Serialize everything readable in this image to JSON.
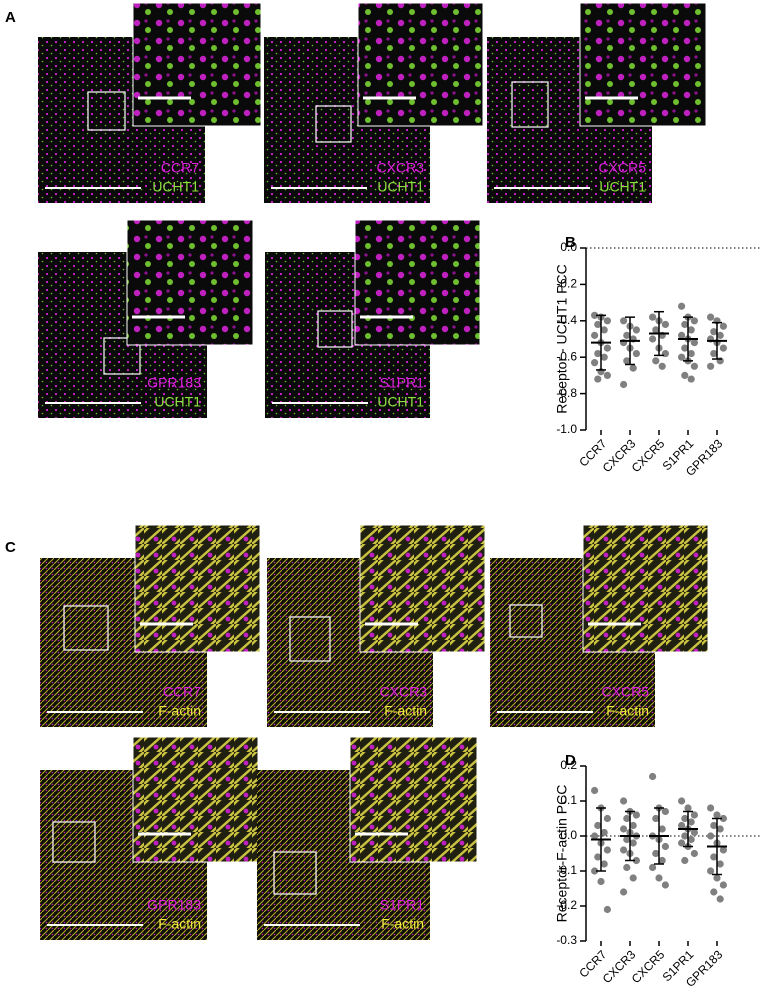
{
  "panels": [
    {
      "letter": "A",
      "images": [
        {
          "receptor": "CCR7",
          "marker": "UCHT1"
        },
        {
          "receptor": "CXCR3",
          "marker": "UCHT1"
        },
        {
          "receptor": "CXCR5",
          "marker": "UCHT1"
        },
        {
          "receptor": "GPR183",
          "marker": "UCHT1"
        },
        {
          "receptor": "S1PR1",
          "marker": "UCHT1"
        }
      ]
    },
    {
      "letter": "C",
      "images": [
        {
          "receptor": "CCR7",
          "marker": "F-actin"
        },
        {
          "receptor": "CXCR3",
          "marker": "F-actin"
        },
        {
          "receptor": "CXCR5",
          "marker": "F-actin"
        },
        {
          "receptor": "GPR183",
          "marker": "F-actin"
        },
        {
          "receptor": "S1PR1",
          "marker": "F-actin"
        }
      ]
    }
  ],
  "chart_data": [
    {
      "type": "strip",
      "panel": "B",
      "ylabel": "Receptor - UCHT1 PCC",
      "categories": [
        "CCR7",
        "CXCR3",
        "CXCR5",
        "S1PR1",
        "GPR183"
      ],
      "color": "#808080",
      "points": [
        [
          -0.37,
          -0.38,
          -0.4,
          -0.42,
          -0.45,
          -0.48,
          -0.52,
          -0.55,
          -0.58,
          -0.6,
          -0.63,
          -0.68,
          -0.7,
          -0.72
        ],
        [
          -0.4,
          -0.43,
          -0.45,
          -0.48,
          -0.5,
          -0.52,
          -0.55,
          -0.58,
          -0.62,
          -0.66,
          -0.75
        ],
        [
          -0.38,
          -0.4,
          -0.42,
          -0.45,
          -0.48,
          -0.5,
          -0.55,
          -0.58,
          -0.62,
          -0.65
        ],
        [
          -0.32,
          -0.38,
          -0.4,
          -0.42,
          -0.45,
          -0.48,
          -0.5,
          -0.52,
          -0.55,
          -0.58,
          -0.6,
          -0.62,
          -0.65,
          -0.7,
          -0.72
        ],
        [
          -0.38,
          -0.4,
          -0.43,
          -0.46,
          -0.48,
          -0.5,
          -0.52,
          -0.55,
          -0.58,
          -0.62,
          -0.65
        ]
      ],
      "means": [
        -0.52,
        -0.51,
        -0.47,
        -0.5,
        -0.51
      ],
      "sds": [
        0.15,
        0.13,
        0.12,
        0.12,
        0.1
      ],
      "ylim": [
        -1,
        0
      ],
      "yticks": [
        {
          "value": 0,
          "label": "0.0"
        },
        -0.2,
        -0.4,
        -0.6,
        -0.8,
        {
          "value": -1,
          "label": "-1.0"
        }
      ],
      "zero_line": true
    },
    {
      "type": "strip",
      "panel": "D",
      "ylabel": "Receptor-F-actin PCC",
      "categories": [
        "CCR7",
        "CXCR3",
        "CXCR5",
        "S1PR1",
        "GPR183"
      ],
      "color": "#808080",
      "points": [
        [
          0.13,
          0.08,
          0.05,
          0.03,
          0.01,
          0,
          -0.02,
          -0.04,
          -0.06,
          -0.08,
          -0.1,
          -0.13,
          -0.21
        ],
        [
          0.1,
          0.07,
          0.06,
          0.05,
          0.03,
          0.02,
          0.01,
          0,
          -0.01,
          -0.02,
          -0.04,
          -0.05,
          -0.07,
          -0.09,
          -0.12,
          -0.16
        ],
        [
          0.17,
          0.08,
          0.07,
          0.05,
          0.02,
          0,
          -0.01,
          -0.03,
          -0.05,
          -0.07,
          -0.09,
          -0.12,
          -0.14
        ],
        [
          0.1,
          0.08,
          0.06,
          0.05,
          0.04,
          0.03,
          0.02,
          0.01,
          0,
          -0.01,
          -0.02,
          -0.03,
          -0.05,
          -0.07
        ],
        [
          0.08,
          0.06,
          0.05,
          0.03,
          0.02,
          0,
          -0.02,
          -0.04,
          -0.06,
          -0.08,
          -0.1,
          -0.12,
          -0.14,
          -0.16,
          -0.18
        ]
      ],
      "means": [
        -0.01,
        0,
        0,
        0.02,
        -0.03
      ],
      "sds": [
        0.09,
        0.07,
        0.08,
        0.05,
        0.08
      ],
      "ylim": [
        -0.3,
        0.2
      ],
      "yticks": [
        0.2,
        0.1,
        {
          "value": 0,
          "label": "0.0"
        },
        -0.1,
        -0.2,
        -0.3
      ],
      "zero_line": true
    }
  ]
}
